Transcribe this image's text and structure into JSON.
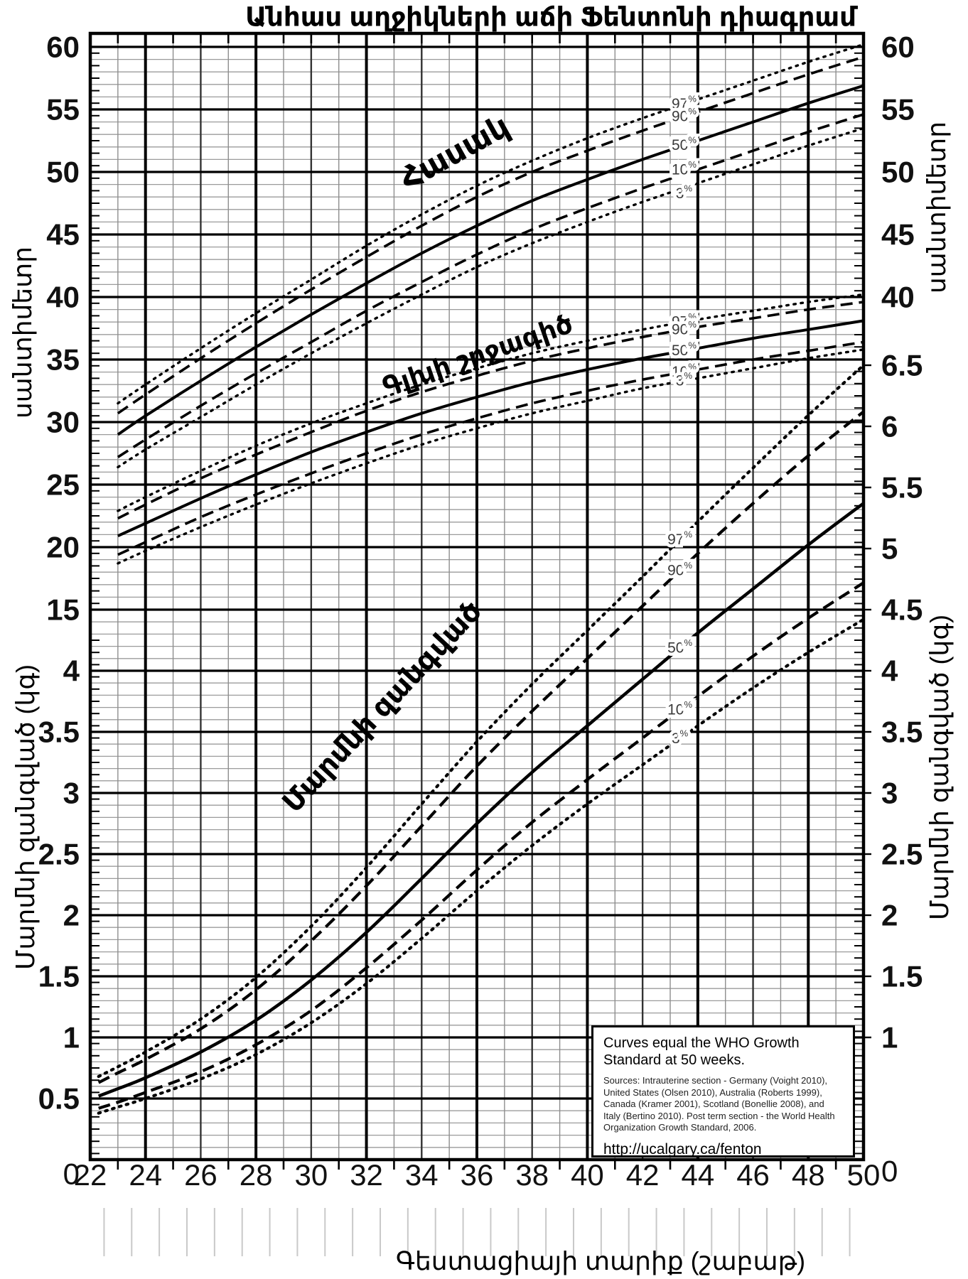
{
  "title": "Անհաս աղջիկների աճի Ֆենտոնի դիագրամ",
  "x_axis": {
    "title": "Գեստացիայի տարիք (շաբաթ)",
    "tick_labels": [
      22,
      24,
      26,
      28,
      30,
      32,
      34,
      36,
      38,
      40,
      42,
      44,
      46,
      48,
      50
    ],
    "origin_label_left": "0",
    "origin_label_right": "0"
  },
  "y_axis_left": {
    "cm_title": "սանտիմետր",
    "kg_title": "Մարմնի զանգված (կգ)",
    "cm_ticks": [
      60,
      55,
      50,
      45,
      40,
      35,
      30,
      25,
      20,
      15
    ],
    "kg_ticks": [
      4,
      3.5,
      3,
      2.5,
      2,
      1.5,
      1,
      0.5
    ]
  },
  "y_axis_right": {
    "cm_title": "սանտիմետր",
    "kg_title": "Մարմնի զանգված (կգ)",
    "cm_ticks": [
      60,
      55,
      50,
      45,
      40
    ],
    "kg_ticks": [
      6.5,
      6,
      5.5,
      5,
      4.5,
      4,
      3.5,
      3,
      2.5,
      2,
      1.5,
      1
    ]
  },
  "info_box": {
    "heading": "Curves equal the WHO Growth Standard at 50 weeks.",
    "sources": "Sources: Intrauterine section - Germany (Voight 2010), United States (Olsen 2010), Australia (Roberts 1999), Canada (Kramer 2001), Scotland (Bonellie 2008), and Italy (Bertino 2010). Post term section - the World Health Organization Growth Standard, 2006.",
    "url": "http://ucalgary.ca/fenton"
  },
  "chart_data": {
    "type": "line",
    "title": "Անհաս աղջիկների աճի Ֆենտոնի դիագրամ",
    "xlabel": "Գեստացիայի տարիք (շաբաթ)",
    "x_range": [
      22,
      50
    ],
    "cm_range": [
      15,
      60
    ],
    "kg_range": [
      0,
      7
    ],
    "percentiles": [
      "97",
      "90",
      "50",
      "10",
      "3"
    ],
    "percent_sign": "%",
    "line_styles": {
      "97": "dotted",
      "90": "dashed",
      "50": "solid",
      "10": "dashed",
      "3": "dotted"
    },
    "groups": [
      {
        "id": "length",
        "label": "Հասակ",
        "unit": "cm",
        "weeks": [
          23,
          24,
          26,
          28,
          30,
          32,
          34,
          36,
          38,
          40,
          42,
          44,
          46,
          48,
          50
        ],
        "series": {
          "97": [
            31.5,
            33.0,
            35.9,
            38.7,
            41.4,
            44.1,
            46.6,
            48.9,
            50.9,
            52.7,
            54.3,
            55.8,
            57.3,
            58.8,
            60.2
          ],
          "90": [
            30.7,
            32.2,
            35.1,
            37.9,
            40.6,
            43.2,
            45.7,
            48.0,
            50.0,
            51.7,
            53.3,
            54.8,
            56.3,
            57.8,
            59.2
          ],
          "50": [
            29.0,
            30.5,
            33.3,
            36.0,
            38.6,
            41.1,
            43.5,
            45.7,
            47.7,
            49.4,
            51.0,
            52.5,
            54.0,
            55.5,
            56.9
          ],
          "10": [
            27.2,
            28.6,
            31.3,
            33.9,
            36.4,
            38.9,
            41.2,
            43.4,
            45.4,
            47.1,
            48.7,
            50.2,
            51.7,
            53.2,
            54.6
          ],
          "3": [
            26.4,
            27.8,
            30.4,
            33.0,
            35.5,
            37.9,
            40.2,
            42.4,
            44.3,
            46.0,
            47.6,
            49.1,
            50.6,
            52.1,
            53.5
          ]
        }
      },
      {
        "id": "head",
        "label": "Գլխի շրջագիծ",
        "unit": "cm",
        "weeks": [
          23,
          24,
          26,
          28,
          30,
          32,
          34,
          36,
          38,
          40,
          42,
          44,
          46,
          48,
          50
        ],
        "series": {
          "97": [
            22.9,
            24.0,
            26.1,
            28.1,
            29.9,
            31.5,
            33.0,
            34.3,
            35.5,
            36.5,
            37.4,
            38.2,
            38.9,
            39.6,
            40.2
          ],
          "90": [
            22.3,
            23.4,
            25.5,
            27.4,
            29.2,
            30.9,
            32.4,
            33.7,
            34.9,
            35.9,
            36.8,
            37.6,
            38.3,
            39.0,
            39.6
          ],
          "50": [
            20.9,
            21.9,
            23.9,
            25.8,
            27.6,
            29.2,
            30.7,
            32.0,
            33.2,
            34.2,
            35.1,
            35.9,
            36.7,
            37.4,
            38.1
          ],
          "10": [
            19.4,
            20.4,
            22.4,
            24.2,
            25.9,
            27.5,
            29.0,
            30.3,
            31.5,
            32.5,
            33.4,
            34.2,
            35.0,
            35.7,
            36.4
          ],
          "3": [
            18.7,
            19.7,
            21.6,
            23.4,
            25.1,
            26.7,
            28.2,
            29.5,
            30.7,
            31.7,
            32.7,
            33.5,
            34.3,
            35.1,
            35.8
          ]
        }
      },
      {
        "id": "weight",
        "label": "Մարմնի զանգված",
        "unit": "kg",
        "weeks": [
          22.3,
          23,
          24,
          26,
          28,
          30,
          32,
          34,
          36,
          38,
          40,
          42,
          44,
          46,
          48,
          50
        ],
        "series": {
          "97": [
            0.68,
            0.76,
            0.88,
            1.15,
            1.49,
            1.91,
            2.39,
            2.91,
            3.42,
            3.89,
            4.33,
            4.77,
            5.22,
            5.66,
            6.09,
            6.5
          ],
          "90": [
            0.63,
            0.71,
            0.82,
            1.07,
            1.39,
            1.79,
            2.24,
            2.73,
            3.22,
            3.67,
            4.1,
            4.53,
            4.96,
            5.37,
            5.76,
            6.12
          ],
          "50": [
            0.52,
            0.58,
            0.67,
            0.88,
            1.14,
            1.47,
            1.86,
            2.3,
            2.75,
            3.17,
            3.55,
            3.93,
            4.31,
            4.67,
            5.03,
            5.37
          ],
          "10": [
            0.42,
            0.47,
            0.55,
            0.72,
            0.94,
            1.22,
            1.57,
            1.96,
            2.37,
            2.76,
            3.11,
            3.45,
            3.79,
            4.12,
            4.43,
            4.72
          ],
          "3": [
            0.38,
            0.43,
            0.5,
            0.66,
            0.86,
            1.12,
            1.44,
            1.81,
            2.2,
            2.57,
            2.91,
            3.23,
            3.55,
            3.86,
            4.15,
            4.42
          ]
        }
      }
    ]
  }
}
